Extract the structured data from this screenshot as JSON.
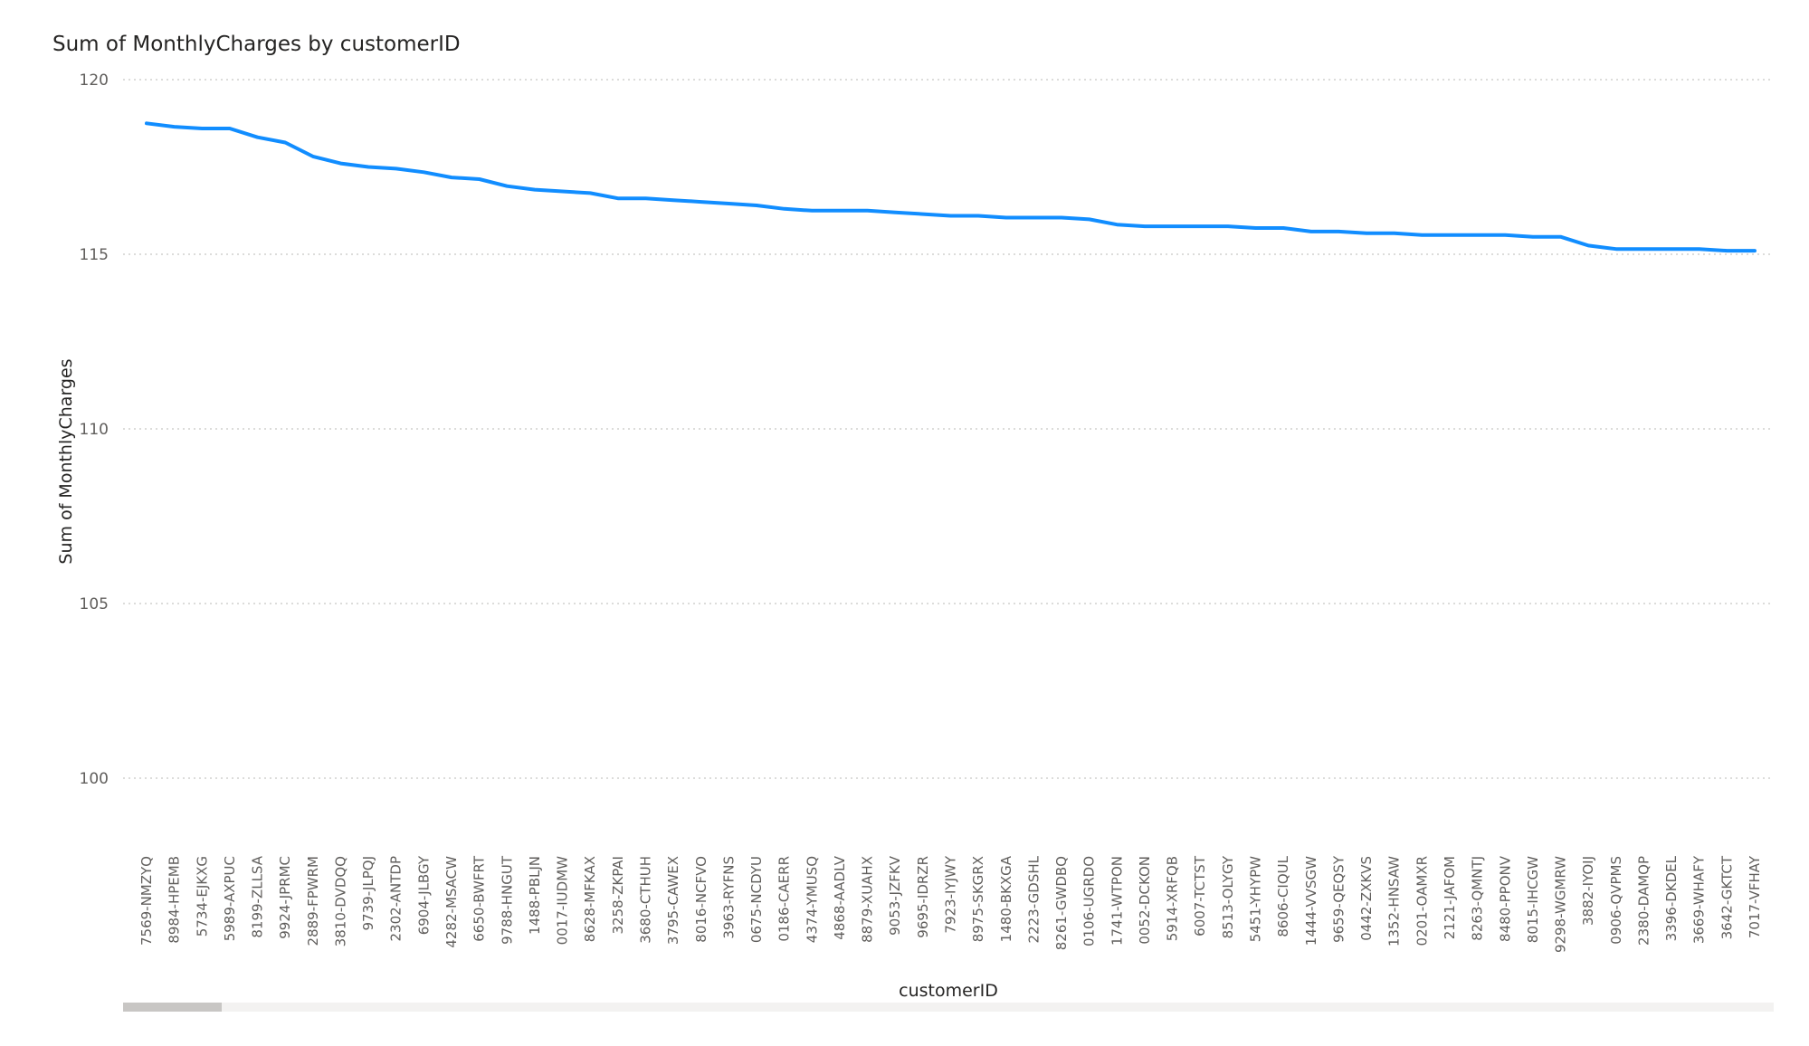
{
  "chart_data": {
    "type": "line",
    "title": "Sum of MonthlyCharges by customerID",
    "xlabel": "customerID",
    "ylabel": "Sum of MonthlyCharges",
    "ylim": [
      98,
      120
    ],
    "yticks": [
      100,
      105,
      110,
      115,
      120
    ],
    "grid": true,
    "line_color": "#118DFF",
    "series": [
      {
        "categories": [
          "7569-NMZYQ",
          "8984-HPEMB",
          "5734-EJKXG",
          "5989-AXPUC",
          "8199-ZLLSA",
          "9924-JPRMC",
          "2889-FPWRM",
          "3810-DVDQQ",
          "9739-JLPQJ",
          "2302-ANTDP",
          "6904-JLBGY",
          "4282-MSACW",
          "6650-BWFRT",
          "9788-HNGUT",
          "1488-PBLJN",
          "0017-IUDMW",
          "8628-MFKAX",
          "3258-ZKPAI",
          "3680-CTHUH",
          "3795-CAWEX",
          "8016-NCFVO",
          "3963-RYFNS",
          "0675-NCDYU",
          "0186-CAERR",
          "4374-YMUSQ",
          "4868-AADLV",
          "8879-XUAHX",
          "9053-JZFKV",
          "9695-IDRZR",
          "7923-IYJWY",
          "8975-SKGRX",
          "1480-BKXGA",
          "2223-GDSHL",
          "8261-GWDBQ",
          "0106-UGRDO",
          "1741-WTPON",
          "0052-DCKON",
          "5914-XRFQB",
          "6007-TCTST",
          "8513-OLYGY",
          "5451-YHYPW",
          "8606-CIQUL",
          "1444-VVSGW",
          "9659-QEQSY",
          "0442-ZXKVS",
          "1352-HNSAW",
          "0201-OAMXR",
          "2121-JAFOM",
          "8263-QMNTJ",
          "8480-PPONV",
          "8015-IHCGW",
          "9298-WGMRW",
          "3882-IYOIJ",
          "0906-QVPMS",
          "2380-DAMQP",
          "3396-DKDEL",
          "3669-WHAFY",
          "3642-GKTCT",
          "7017-VFHAY"
        ],
        "values": [
          118.75,
          118.65,
          118.6,
          118.6,
          118.35,
          118.2,
          117.8,
          117.6,
          117.5,
          117.45,
          117.35,
          117.2,
          117.15,
          116.95,
          116.85,
          116.8,
          116.75,
          116.6,
          116.6,
          116.55,
          116.5,
          116.45,
          116.4,
          116.3,
          116.25,
          116.25,
          116.25,
          116.2,
          116.15,
          116.1,
          116.1,
          116.05,
          116.05,
          116.05,
          116.0,
          115.85,
          115.8,
          115.8,
          115.8,
          115.8,
          115.75,
          115.75,
          115.65,
          115.65,
          115.6,
          115.6,
          115.55,
          115.55,
          115.55,
          115.55,
          115.5,
          115.5,
          115.25,
          115.15,
          115.15,
          115.15,
          115.15,
          115.1,
          115.1
        ]
      }
    ],
    "scrollbar_position": 0.06
  }
}
